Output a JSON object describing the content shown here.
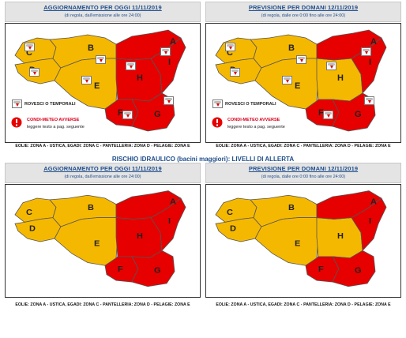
{
  "panels": {
    "tl": {
      "title": "AGGIORNAMENTO PER OGGI 11/11/2019",
      "subtitle": "(di regola, dall'emissione alle ore 24:00)"
    },
    "tr": {
      "title": "PREVISIONE PER DOMANI 12/11/2019",
      "subtitle": "(di regola, dalle ore 0:00 fino alle ore 24:00)"
    },
    "bl": {
      "title": "AGGIORNAMENTO PER OGGI 11/11/2019",
      "subtitle": "(di regola, dall'emissione alle ore 24:00)"
    },
    "br": {
      "title": "PREVISIONE PER DOMANI 12/11/2019",
      "subtitle": "(di regola, dalle ore 0:00 fino alle ore 24:00)"
    }
  },
  "section_title": "RISCHIO IDRAULICO (bacini maggiori): LIVELLI DI ALLERTA",
  "legend": {
    "storm_label": "ROVESCI O TEMPORALI",
    "adverse_label": "CONDI-METEO AVVERSE",
    "adverse_note": "leggere testo a pag. seguente"
  },
  "footer": "EOLIE: ZONA A - USTICA, EGADI: ZONA C - PANTELLERIA: ZONA D - PELAGIE: ZONA E",
  "zones": {
    "A": "A",
    "B": "B",
    "C": "C",
    "D": "D",
    "E": "E",
    "F": "F",
    "G": "G",
    "H": "H",
    "I": "I"
  },
  "colors": {
    "yellow": "#f5b800",
    "red": "#e60000",
    "border": "#555555"
  },
  "icons": [
    "storm-icon",
    "alert-icon"
  ]
}
